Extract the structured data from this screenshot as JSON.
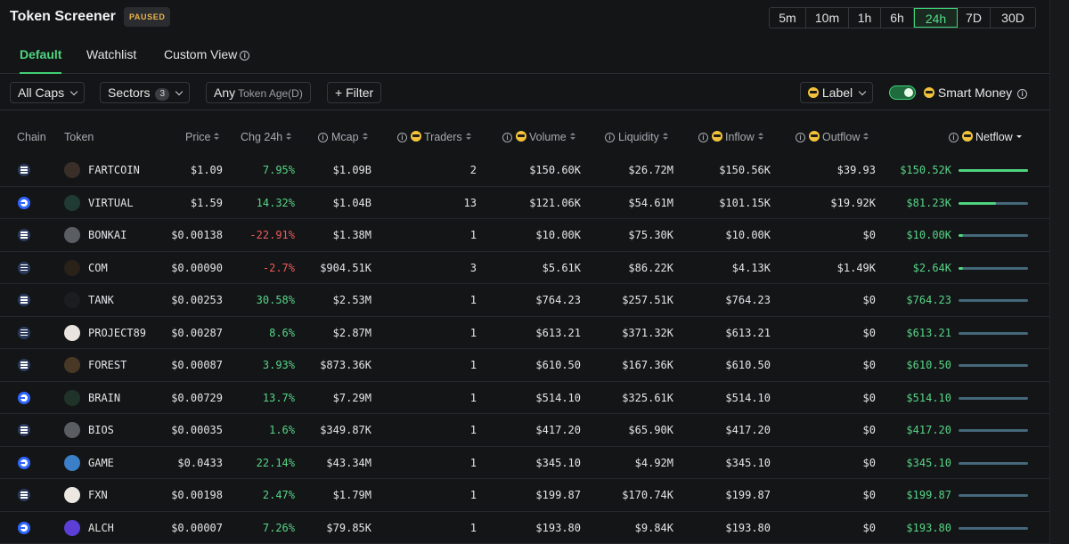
{
  "header": {
    "title": "Token Screener",
    "status_badge": "PAUSED",
    "timeframes": [
      "5m",
      "10m",
      "1h",
      "6h",
      "24h",
      "7D",
      "30D"
    ],
    "active_timeframe": "24h"
  },
  "tabs": [
    {
      "label": "Default",
      "active": true
    },
    {
      "label": "Watchlist",
      "active": false
    },
    {
      "label": "Custom View",
      "active": false,
      "info": true
    }
  ],
  "filters": {
    "caps": "All Caps",
    "sectors": "Sectors",
    "sectors_count": "3",
    "age_value": "Any",
    "age_label": "Token Age(D)",
    "add_filter": "+ Filter",
    "label_dropdown": "Label",
    "smart_money": "Smart Money",
    "smart_money_enabled": true
  },
  "columns": {
    "chain": "Chain",
    "token": "Token",
    "price": "Price",
    "chg": "Chg 24h",
    "mcap": "Mcap",
    "traders": "Traders",
    "volume": "Volume",
    "liquidity": "Liquidity",
    "inflow": "Inflow",
    "outflow": "Outflow",
    "netflow": "Netflow"
  },
  "rows": [
    {
      "chain": "solana",
      "token": "FARTCOIN",
      "icon_color": "#3a2f28",
      "price": "$1.09",
      "chg": "7.95%",
      "chg_dir": "pos",
      "mcap": "$1.09B",
      "traders": "2",
      "volume": "$150.60K",
      "liquidity": "$26.72M",
      "inflow": "$150.56K",
      "outflow": "$39.93",
      "netflow": "$150.52K",
      "netflow_fraction": 1.0
    },
    {
      "chain": "base",
      "token": "VIRTUAL",
      "icon_color": "#1f3b33",
      "price": "$1.59",
      "chg": "14.32%",
      "chg_dir": "pos",
      "mcap": "$1.04B",
      "traders": "13",
      "volume": "$121.06K",
      "liquidity": "$54.61M",
      "inflow": "$101.15K",
      "outflow": "$19.92K",
      "netflow": "$81.23K",
      "netflow_fraction": 0.54
    },
    {
      "chain": "solana",
      "token": "BONKAI",
      "icon_color": "#5a5d62",
      "price": "$0.00138",
      "chg": "-22.91%",
      "chg_dir": "neg",
      "mcap": "$1.38M",
      "traders": "1",
      "volume": "$10.00K",
      "liquidity": "$75.30K",
      "inflow": "$10.00K",
      "outflow": "$0",
      "netflow": "$10.00K",
      "netflow_fraction": 0.07
    },
    {
      "chain": "solana",
      "token": "COM",
      "icon_color": "#2a2118",
      "price": "$0.00090",
      "chg": "-2.7%",
      "chg_dir": "neg",
      "mcap": "$904.51K",
      "traders": "3",
      "volume": "$5.61K",
      "liquidity": "$86.22K",
      "inflow": "$4.13K",
      "outflow": "$1.49K",
      "netflow": "$2.64K",
      "netflow_fraction": 0.02
    },
    {
      "chain": "solana",
      "token": "TANK",
      "icon_color": "#1b1d20",
      "price": "$0.00253",
      "chg": "30.58%",
      "chg_dir": "pos",
      "mcap": "$2.53M",
      "traders": "1",
      "volume": "$764.23",
      "liquidity": "$257.51K",
      "inflow": "$764.23",
      "outflow": "$0",
      "netflow": "$764.23",
      "netflow_fraction": 0.0
    },
    {
      "chain": "solana",
      "token": "PROJECT89",
      "icon_color": "#e9e4df",
      "price": "$0.00287",
      "chg": "8.6%",
      "chg_dir": "pos",
      "mcap": "$2.87M",
      "traders": "1",
      "volume": "$613.21",
      "liquidity": "$371.32K",
      "inflow": "$613.21",
      "outflow": "$0",
      "netflow": "$613.21",
      "netflow_fraction": 0.0
    },
    {
      "chain": "solana",
      "token": "FOREST",
      "icon_color": "#4a3826",
      "price": "$0.00087",
      "chg": "3.93%",
      "chg_dir": "pos",
      "mcap": "$873.36K",
      "traders": "1",
      "volume": "$610.50",
      "liquidity": "$167.36K",
      "inflow": "$610.50",
      "outflow": "$0",
      "netflow": "$610.50",
      "netflow_fraction": 0.0
    },
    {
      "chain": "base",
      "token": "BRAIN",
      "icon_color": "#203329",
      "price": "$0.00729",
      "chg": "13.7%",
      "chg_dir": "pos",
      "mcap": "$7.29M",
      "traders": "1",
      "volume": "$514.10",
      "liquidity": "$325.61K",
      "inflow": "$514.10",
      "outflow": "$0",
      "netflow": "$514.10",
      "netflow_fraction": 0.0
    },
    {
      "chain": "solana",
      "token": "BIOS",
      "icon_color": "#5a5d62",
      "price": "$0.00035",
      "chg": "1.6%",
      "chg_dir": "pos",
      "mcap": "$349.87K",
      "traders": "1",
      "volume": "$417.20",
      "liquidity": "$65.90K",
      "inflow": "$417.20",
      "outflow": "$0",
      "netflow": "$417.20",
      "netflow_fraction": 0.0
    },
    {
      "chain": "base",
      "token": "GAME",
      "icon_color": "#3c7fc9",
      "price": "$0.0433",
      "chg": "22.14%",
      "chg_dir": "pos",
      "mcap": "$43.34M",
      "traders": "1",
      "volume": "$345.10",
      "liquidity": "$4.92M",
      "inflow": "$345.10",
      "outflow": "$0",
      "netflow": "$345.10",
      "netflow_fraction": 0.0
    },
    {
      "chain": "solana",
      "token": "FXN",
      "icon_color": "#ece7e1",
      "price": "$0.00198",
      "chg": "2.47%",
      "chg_dir": "pos",
      "mcap": "$1.79M",
      "traders": "1",
      "volume": "$199.87",
      "liquidity": "$170.74K",
      "inflow": "$199.87",
      "outflow": "$0",
      "netflow": "$199.87",
      "netflow_fraction": 0.0
    },
    {
      "chain": "base",
      "token": "ALCH",
      "icon_color": "#5b3fd6",
      "price": "$0.00007",
      "chg": "7.26%",
      "chg_dir": "pos",
      "mcap": "$79.85K",
      "traders": "1",
      "volume": "$193.80",
      "liquidity": "$9.84K",
      "inflow": "$193.80",
      "outflow": "$0",
      "netflow": "$193.80",
      "netflow_fraction": 0.0
    }
  ]
}
